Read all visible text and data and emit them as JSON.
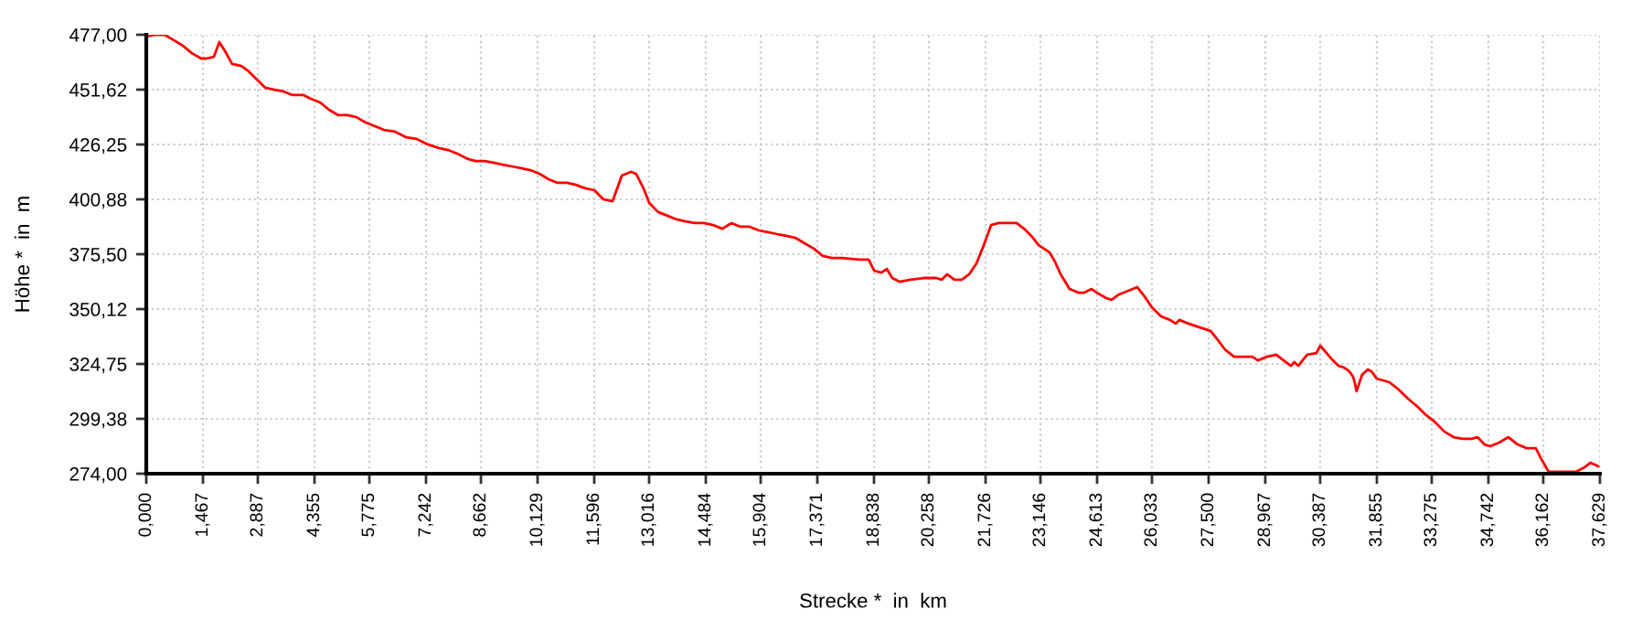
{
  "chart_data": {
    "type": "line",
    "xlabel": "Strecke *  in  km",
    "ylabel": "Höhe *  in  m",
    "xlim": [
      0,
      37.629
    ],
    "ylim": [
      274,
      477
    ],
    "xticks": [
      {
        "value": 0,
        "label": "0,000"
      },
      {
        "value": 1.467,
        "label": "1,467"
      },
      {
        "value": 2.887,
        "label": "2,887"
      },
      {
        "value": 4.355,
        "label": "4,355"
      },
      {
        "value": 5.775,
        "label": "5,775"
      },
      {
        "value": 7.242,
        "label": "7,242"
      },
      {
        "value": 8.662,
        "label": "8,662"
      },
      {
        "value": 10.129,
        "label": "10,129"
      },
      {
        "value": 11.596,
        "label": "11,596"
      },
      {
        "value": 13.016,
        "label": "13,016"
      },
      {
        "value": 14.484,
        "label": "14,484"
      },
      {
        "value": 15.904,
        "label": "15,904"
      },
      {
        "value": 17.371,
        "label": "17,371"
      },
      {
        "value": 18.838,
        "label": "18,838"
      },
      {
        "value": 20.258,
        "label": "20,258"
      },
      {
        "value": 21.726,
        "label": "21,726"
      },
      {
        "value": 23.146,
        "label": "23,146"
      },
      {
        "value": 24.613,
        "label": "24,613"
      },
      {
        "value": 26.033,
        "label": "26,033"
      },
      {
        "value": 27.5,
        "label": "27,500"
      },
      {
        "value": 28.967,
        "label": "28,967"
      },
      {
        "value": 30.387,
        "label": "30,387"
      },
      {
        "value": 31.855,
        "label": "31,855"
      },
      {
        "value": 33.275,
        "label": "33,275"
      },
      {
        "value": 34.742,
        "label": "34,742"
      },
      {
        "value": 36.162,
        "label": "36,162"
      },
      {
        "value": 37.629,
        "label": "37,629"
      }
    ],
    "yticks": [
      {
        "value": 274,
        "label": "274,00"
      },
      {
        "value": 299.38,
        "label": "299,38"
      },
      {
        "value": 324.75,
        "label": "324,75"
      },
      {
        "value": 350.12,
        "label": "350,12"
      },
      {
        "value": 375.5,
        "label": "375,50"
      },
      {
        "value": 400.88,
        "label": "400,88"
      },
      {
        "value": 426.25,
        "label": "426,25"
      },
      {
        "value": 451.62,
        "label": "451,62"
      },
      {
        "value": 477,
        "label": "477,00"
      }
    ],
    "grid": true,
    "marker": "none",
    "line_style": "solid",
    "series": [
      {
        "color": "#ff0000",
        "x": [
          0,
          0.24,
          0.47,
          0.71,
          0.95,
          1.18,
          1.42,
          1.56,
          1.75,
          1.89,
          2.04,
          2.22,
          2.46,
          2.65,
          2.84,
          3.08,
          3.31,
          3.55,
          3.79,
          4.07,
          4.26,
          4.5,
          4.73,
          4.97,
          5.21,
          5.44,
          5.68,
          5.92,
          6.15,
          6.44,
          6.72,
          7.0,
          7.29,
          7.57,
          7.81,
          8.05,
          8.33,
          8.52,
          8.76,
          8.99,
          9.23,
          9.47,
          9.7,
          9.94,
          10.18,
          10.41,
          10.65,
          10.89,
          11.12,
          11.36,
          11.6,
          11.83,
          12.07,
          12.31,
          12.54,
          12.68,
          12.87,
          13.02,
          13.25,
          13.49,
          13.73,
          13.96,
          14.2,
          14.44,
          14.67,
          14.91,
          15.15,
          15.38,
          15.62,
          15.86,
          16.09,
          16.33,
          16.57,
          16.8,
          17.04,
          17.28,
          17.51,
          17.75,
          17.99,
          18.46,
          18.7,
          18.84,
          19.03,
          19.17,
          19.31,
          19.5,
          19.78,
          20.12,
          20.45,
          20.59,
          20.73,
          20.92,
          21.11,
          21.3,
          21.49,
          21.68,
          21.87,
          22.06,
          22.53,
          22.72,
          22.91,
          23.1,
          23.38,
          23.52,
          23.67,
          23.9,
          24.14,
          24.28,
          24.47,
          24.61,
          24.85,
          24.99,
          25.18,
          25.42,
          25.65,
          25.84,
          26.03,
          26.27,
          26.5,
          26.65,
          26.74,
          26.98,
          27.26,
          27.55,
          27.74,
          27.92,
          28.16,
          28.63,
          28.78,
          29.01,
          29.25,
          29.44,
          29.63,
          29.72,
          29.82,
          30.05,
          30.29,
          30.39,
          30.67,
          30.86,
          31.0,
          31.14,
          31.24,
          31.29,
          31.33,
          31.47,
          31.62,
          31.71,
          31.85,
          32.18,
          32.42,
          32.66,
          32.89,
          33.13,
          33.37,
          33.6,
          33.84,
          34.08,
          34.31,
          34.46,
          34.64,
          34.79,
          35.02,
          35.26,
          35.5,
          35.73,
          35.97,
          36.11,
          36.3,
          36.54,
          37.01,
          37.2,
          37.39,
          37.58
        ],
        "values": [
          476.2,
          477,
          477,
          474.5,
          471.9,
          468.5,
          466,
          466,
          466.8,
          473.6,
          469.4,
          463.5,
          462.6,
          460.1,
          456.7,
          452.5,
          451.6,
          450.8,
          449.1,
          449.1,
          447.4,
          445.7,
          442.3,
          439.8,
          439.8,
          438.9,
          436.4,
          434.7,
          433,
          432.2,
          429.6,
          428.8,
          426.3,
          424.6,
          423.7,
          422,
          419.5,
          418.6,
          418.6,
          417.8,
          416.9,
          416.1,
          415.3,
          414.4,
          412.7,
          410.2,
          408.5,
          408.5,
          407.6,
          406,
          405.1,
          400.9,
          400,
          411.9,
          413.6,
          412.7,
          406,
          399.2,
          395,
          393.3,
          391.6,
          390.7,
          389.9,
          389.9,
          389,
          387.3,
          389.9,
          388.2,
          388.2,
          386.5,
          385.7,
          384.8,
          384,
          383.1,
          380.6,
          378.1,
          374.7,
          373.8,
          373.8,
          373,
          373,
          367.9,
          367,
          368.7,
          364.5,
          362.8,
          363.7,
          364.5,
          364.5,
          363.7,
          366.2,
          363.7,
          363.7,
          366.2,
          371.3,
          379.7,
          389,
          389.9,
          389.9,
          387.3,
          384,
          379.7,
          376.4,
          372.1,
          366.2,
          359.4,
          357.7,
          357.7,
          359.4,
          357.7,
          355.2,
          354.4,
          356.9,
          358.6,
          360.3,
          356,
          351,
          346.7,
          345.1,
          343.4,
          345.1,
          343.4,
          341.7,
          340,
          335.8,
          331.5,
          328.1,
          328.1,
          326.4,
          328.1,
          329,
          326.4,
          323.9,
          325.6,
          323.9,
          329,
          329.8,
          333.2,
          327.3,
          323.9,
          323.1,
          321.4,
          318.8,
          315.5,
          312.1,
          319.7,
          322.2,
          321.4,
          318,
          316.3,
          312.9,
          308.7,
          305.3,
          301.1,
          297.7,
          293.5,
          290.9,
          290.1,
          290.1,
          290.9,
          287.5,
          286.7,
          288.4,
          290.9,
          287.5,
          285.8,
          285.8,
          280.8,
          274.9,
          274.9,
          274.9,
          276.6,
          279.1,
          277.4
        ]
      }
    ]
  }
}
